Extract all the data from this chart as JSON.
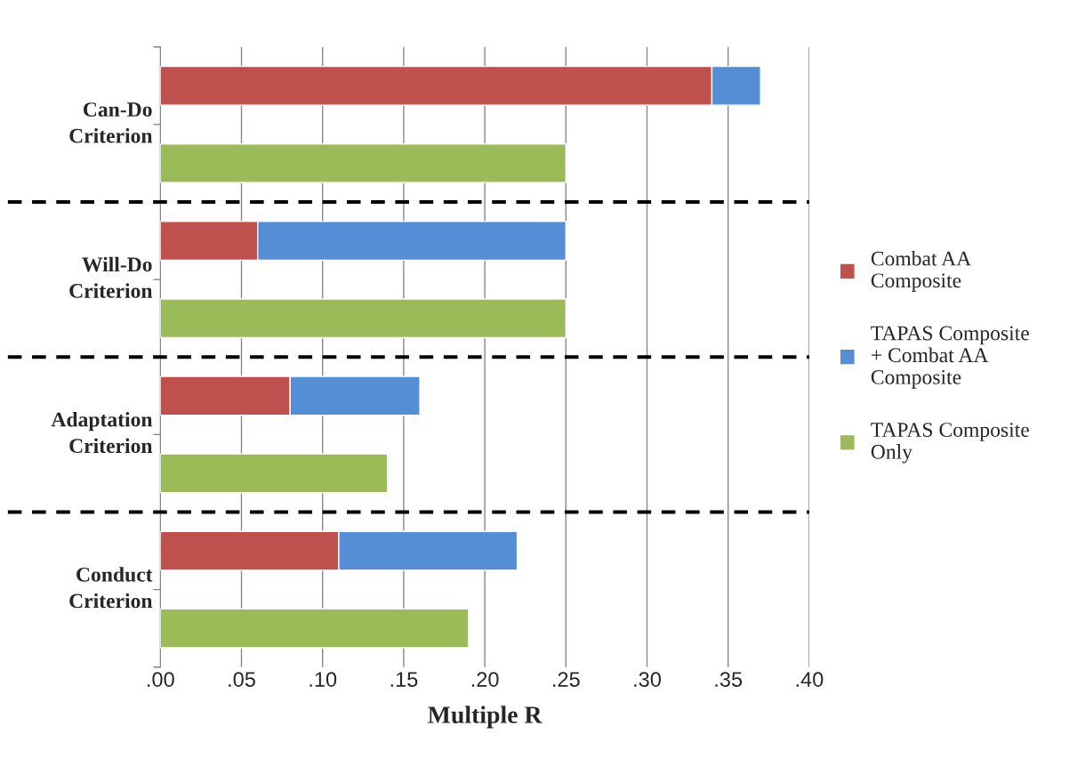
{
  "chart_data": {
    "type": "bar",
    "orientation": "horizontal",
    "xlabel": "Multiple R",
    "categories": [
      null,
      null,
      null,
      null,
      null,
      null,
      null,
      null
    ],
    "annotations": [
      "Can-Do\nCriterion",
      "Will-Do\nCriterion",
      "Adaptation\nCriterion",
      "Conduct\nCriterion"
    ],
    "series": [
      {
        "name": "Combat AA\nComposite",
        "color": "#c0504d",
        "values": [
          0.34,
          null,
          0.06,
          null,
          0.08,
          null,
          0.11,
          null
        ]
      },
      {
        "name": "TAPAS Composite\n+ Combat AA\nComposite",
        "color": "#558ed5",
        "values": [
          0.03,
          null,
          0.19,
          null,
          0.08,
          null,
          0.11,
          null
        ]
      },
      {
        "name": "TAPAS Composite\nOnly",
        "color": "#9bbb59",
        "values": [
          null,
          0.25,
          null,
          0.25,
          null,
          0.14,
          null,
          0.19
        ]
      }
    ],
    "xlim": [
      0,
      0.4
    ],
    "xticks": [
      {
        "value": 0,
        "label": ".00"
      },
      {
        "value": 0.05,
        "label": ".05"
      },
      {
        "value": 0.1,
        "label": ".10"
      },
      {
        "value": 0.15,
        "label": ".15"
      },
      {
        "value": 0.2,
        "label": ".20"
      },
      {
        "value": 0.25,
        "label": ".25"
      },
      {
        "value": 0.3,
        "label": ".30"
      },
      {
        "value": 0.35,
        "label": ".35"
      },
      {
        "value": 0.4,
        "label": ".40"
      }
    ],
    "stacked": true,
    "grid": "x",
    "legend": "right"
  }
}
